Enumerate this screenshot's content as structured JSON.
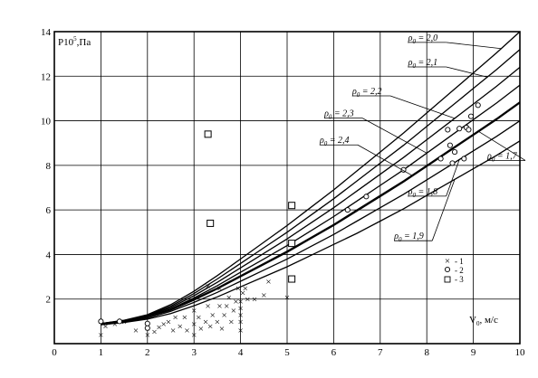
{
  "chart_data": {
    "type": "line",
    "ylabel": "P10",
    "ylabel_sup": "5",
    "ylabel_unit": ",Па",
    "xlabel": "V",
    "xlabel_sub": "0",
    "xlabel_unit": ", м/с",
    "xlim": [
      0,
      10
    ],
    "ylim": [
      0,
      14
    ],
    "x_ticks": [
      "0",
      "1",
      "2",
      "3",
      "4",
      "5",
      "6",
      "7",
      "8",
      "9",
      "10"
    ],
    "y_ticks": [
      "2",
      "4",
      "6",
      "8",
      "10",
      "12",
      "14"
    ],
    "grid": true,
    "curve_x": [
      1,
      1.5,
      2,
      2.5,
      3,
      3.5,
      4,
      4.5,
      5,
      5.5,
      6,
      6.5,
      7,
      7.5,
      8,
      8.5,
      9,
      9.5,
      10
    ],
    "series": [
      {
        "label_prefix": "ρ",
        "label_sub": "0",
        "label_value": "= 2,0",
        "values": [
          0.9,
          1.05,
          1.3,
          1.75,
          2.35,
          3.05,
          3.8,
          4.55,
          5.3,
          6.1,
          6.9,
          7.75,
          8.6,
          9.45,
          10.35,
          11.25,
          12.15,
          13.05,
          14.0
        ]
      },
      {
        "label_prefix": "ρ",
        "label_sub": "0",
        "label_value": "= 2,1",
        "values": [
          0.9,
          1.04,
          1.27,
          1.68,
          2.25,
          2.9,
          3.6,
          4.3,
          5.0,
          5.75,
          6.5,
          7.3,
          8.1,
          8.9,
          9.75,
          10.6,
          11.45,
          12.3,
          13.2
        ]
      },
      {
        "label_prefix": "ρ",
        "label_sub": "0",
        "label_value": "= 2,2",
        "values": [
          0.9,
          1.03,
          1.25,
          1.62,
          2.15,
          2.75,
          3.4,
          4.05,
          4.7,
          5.4,
          6.1,
          6.85,
          7.6,
          8.35,
          9.15,
          9.95,
          10.75,
          11.55,
          12.4
        ]
      },
      {
        "label_prefix": "ρ",
        "label_sub": "0",
        "label_value": "= 2,3",
        "values": [
          0.9,
          1.02,
          1.22,
          1.56,
          2.05,
          2.6,
          3.2,
          3.8,
          4.4,
          5.05,
          5.7,
          6.4,
          7.1,
          7.8,
          8.55,
          9.3,
          10.05,
          10.8,
          11.6
        ]
      },
      {
        "label_prefix": "ρ",
        "label_sub": "0",
        "label_value": "= 2,4",
        "values": [
          0.9,
          1.01,
          1.2,
          1.5,
          1.95,
          2.45,
          3.0,
          3.55,
          4.1,
          4.7,
          5.3,
          5.95,
          6.6,
          7.25,
          7.95,
          8.65,
          9.35,
          10.05,
          10.8
        ]
      },
      {
        "label_prefix": "ρ",
        "label_sub": "0",
        "label_value": "= 1,9",
        "values": [
          0.85,
          0.95,
          1.1,
          1.35,
          1.7,
          2.1,
          2.55,
          3.0,
          3.45,
          3.95,
          4.45,
          4.95,
          5.5,
          6.05,
          6.65,
          7.25,
          7.85,
          8.45,
          9.1
        ]
      },
      {
        "label_prefix": "ρ",
        "label_sub": "0",
        "label_value": "= 1,8",
        "values": [
          0.85,
          0.97,
          1.15,
          1.45,
          1.85,
          2.3,
          2.8,
          3.3,
          3.8,
          4.35,
          4.9,
          5.5,
          6.1,
          6.7,
          7.35,
          8.0,
          8.65,
          9.3,
          10.0
        ]
      },
      {
        "label_prefix": "ρ",
        "label_sub": "0",
        "label_value": "= 1,7",
        "values": [
          0.88,
          1.0,
          1.2,
          1.55,
          2.0,
          2.5,
          3.05,
          3.6,
          4.15,
          4.75,
          5.35,
          6.0,
          6.65,
          7.3,
          8.0,
          8.7,
          9.4,
          10.1,
          10.85
        ]
      }
    ],
    "points_1": [
      [
        1,
        0.4
      ],
      [
        1,
        1
      ],
      [
        1.1,
        0.8
      ],
      [
        1.3,
        0.9
      ],
      [
        1.5,
        1
      ],
      [
        1.75,
        0.6
      ],
      [
        2,
        0.4
      ],
      [
        2,
        0.7
      ],
      [
        2.15,
        0.55
      ],
      [
        2.25,
        0.75
      ],
      [
        2.35,
        0.9
      ],
      [
        2.45,
        1
      ],
      [
        2.55,
        0.6
      ],
      [
        2.6,
        1.2
      ],
      [
        2.7,
        0.8
      ],
      [
        2.8,
        1.2
      ],
      [
        2.85,
        0.6
      ],
      [
        3,
        0.4
      ],
      [
        3,
        0.9
      ],
      [
        3,
        1.5
      ],
      [
        3.1,
        1.2
      ],
      [
        3.15,
        0.7
      ],
      [
        3.25,
        1
      ],
      [
        3.3,
        1.7
      ],
      [
        3.35,
        0.8
      ],
      [
        3.4,
        1.3
      ],
      [
        3.5,
        1
      ],
      [
        3.55,
        1.7
      ],
      [
        3.6,
        0.7
      ],
      [
        3.65,
        1.3
      ],
      [
        3.7,
        1.7
      ],
      [
        3.75,
        2.1
      ],
      [
        3.8,
        1
      ],
      [
        3.85,
        1.5
      ],
      [
        3.9,
        1.9
      ],
      [
        3.95,
        2.5
      ],
      [
        4,
        0.6
      ],
      [
        4,
        1
      ],
      [
        4,
        1.3
      ],
      [
        4,
        1.6
      ],
      [
        4,
        1.9
      ],
      [
        4.05,
        2.3
      ],
      [
        4.1,
        2.5
      ],
      [
        4.15,
        2
      ],
      [
        4.3,
        2
      ],
      [
        4.5,
        2.2
      ],
      [
        4.6,
        2.8
      ],
      [
        5,
        2.1
      ],
      [
        3.3,
        2.6
      ],
      [
        3.55,
        2.5
      ]
    ],
    "points_2": [
      [
        1,
        1
      ],
      [
        1.4,
        1
      ],
      [
        2,
        0.9
      ],
      [
        2,
        0.7
      ],
      [
        6.3,
        6
      ],
      [
        6.7,
        6.6
      ],
      [
        7.5,
        7.8
      ],
      [
        8.3,
        8.3
      ],
      [
        8.45,
        9.6
      ],
      [
        8.5,
        8.9
      ],
      [
        8.55,
        8.1
      ],
      [
        8.6,
        8.6
      ],
      [
        8.7,
        9.65
      ],
      [
        8.8,
        8.3
      ],
      [
        8.85,
        9.7
      ],
      [
        8.9,
        9.6
      ],
      [
        8.95,
        10.2
      ],
      [
        9.1,
        10.7
      ]
    ],
    "points_3": [
      [
        3.3,
        9.4
      ],
      [
        3.35,
        5.4
      ],
      [
        5.1,
        6.2
      ],
      [
        5.1,
        4.5
      ],
      [
        5.1,
        2.9
      ]
    ],
    "legend": [
      "- 1",
      "- 2",
      "- 3"
    ],
    "legend_markers": [
      "x",
      "circle",
      "square"
    ],
    "legend_position": "right"
  }
}
